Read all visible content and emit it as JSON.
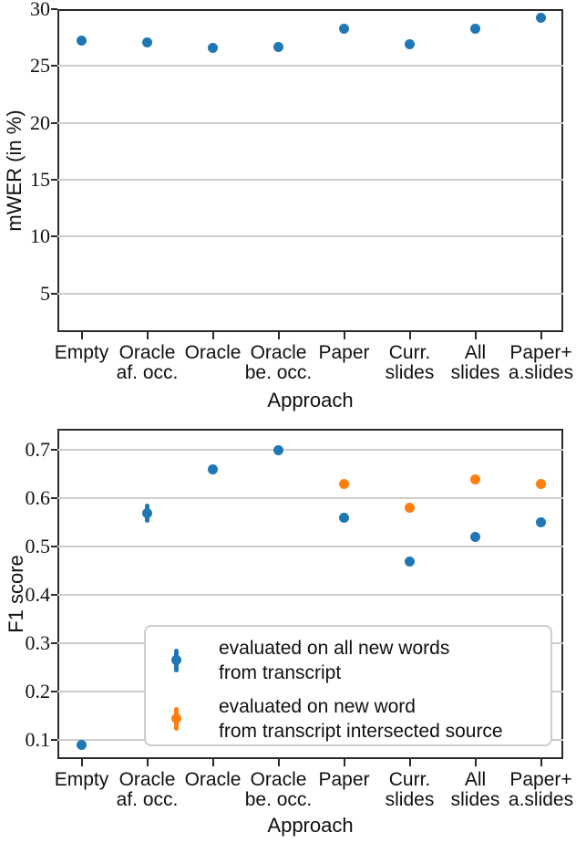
{
  "colors": {
    "blue": "#1f77b4",
    "orange": "#ff7f0e",
    "grid": "#cccccc",
    "spine": "#2a2a2a"
  },
  "chart_data": [
    {
      "type": "scatter",
      "title": "",
      "xlabel": "Approach",
      "ylabel": "mWER (in %)",
      "categories": [
        [
          "Empty",
          ""
        ],
        [
          "Oracle",
          "af. occ."
        ],
        [
          "Oracle",
          ""
        ],
        [
          "Oracle",
          "be. occ."
        ],
        [
          "Paper",
          ""
        ],
        [
          "Curr.",
          "slides"
        ],
        [
          "All",
          "slides"
        ],
        [
          "Paper+",
          "a.slides"
        ]
      ],
      "ytick_labels": [
        "5",
        "10",
        "15",
        "20",
        "25",
        "30"
      ],
      "ylim": [
        1.6,
        30
      ],
      "grid": true,
      "legend": null,
      "series": [
        {
          "name": "mWER",
          "color": "#1f77b4",
          "marker": "circle",
          "values": [
            27.2,
            27.1,
            26.6,
            26.7,
            28.3,
            26.9,
            28.3,
            29.2
          ],
          "yerr": [
            0,
            0,
            0,
            0,
            0,
            0,
            0,
            0
          ]
        }
      ]
    },
    {
      "type": "scatter",
      "title": "",
      "xlabel": "Approach",
      "ylabel": "F1 score",
      "categories": [
        [
          "Empty",
          ""
        ],
        [
          "Oracle",
          "af. occ."
        ],
        [
          "Oracle",
          ""
        ],
        [
          "Oracle",
          "be. occ."
        ],
        [
          "Paper",
          ""
        ],
        [
          "Curr.",
          "slides"
        ],
        [
          "All",
          "slides"
        ],
        [
          "Paper+",
          "a.slides"
        ]
      ],
      "ytick_labels": [
        "0.1",
        "0.2",
        "0.3",
        "0.4",
        "0.5",
        "0.6",
        "0.7"
      ],
      "ylim": [
        0.06,
        0.744
      ],
      "grid": true,
      "series": [
        {
          "name": "evaluated on all new words from transcript",
          "color": "#1f77b4",
          "marker": "circle",
          "values": [
            0.09,
            0.57,
            0.66,
            0.7,
            0.56,
            0.47,
            0.52,
            0.55
          ],
          "yerr": [
            0,
            0.02,
            0,
            0,
            0,
            0,
            0,
            0
          ]
        },
        {
          "name": "evaluated on new word from transcript intersected source",
          "color": "#ff7f0e",
          "marker": "circle",
          "values": [
            null,
            null,
            null,
            null,
            0.63,
            0.58,
            0.64,
            0.63
          ],
          "yerr": [
            0,
            0,
            0,
            0,
            0,
            0,
            0,
            0
          ]
        }
      ],
      "legend": {
        "position": "lower center",
        "entries": [
          {
            "color": "#1f77b4",
            "line1": "evaluated on all new words",
            "line2": "from transcript"
          },
          {
            "color": "#ff7f0e",
            "line1": "evaluated on new word",
            "line2": "from transcript intersected source"
          }
        ]
      }
    }
  ]
}
